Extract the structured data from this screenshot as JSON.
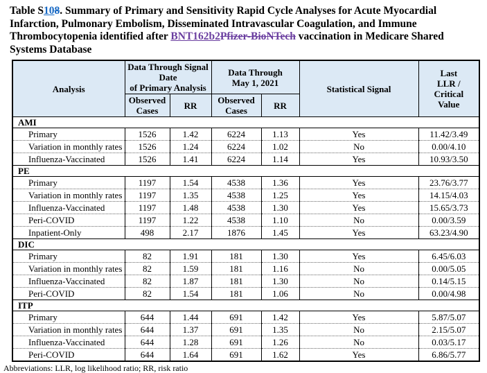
{
  "colors": {
    "insertion_blue": "#1668C4",
    "revision_purple": "#6B3FA0",
    "header_bg": "#DCE9F5",
    "table_border": "#000000"
  },
  "title": {
    "part1": "Table S",
    "inserted_number": "10",
    "deleted_number": "8",
    "part2": ". Summary of Primary and Sensitivity Rapid Cycle Analyses for Acute Myocardial Infarction, Pulmonary Embolism, Disseminated Intravascular Coagulation, and Immune Thrombocytopenia identified after ",
    "inserted_vaccine": "BNT162b2",
    "deleted_vaccine": "Pfizer-BioNTech",
    "part3": " vaccination in Medicare Shared Systems Database"
  },
  "table": {
    "header": {
      "analysis": "Analysis",
      "group1": "Data Through Signal\nDate\nof Primary Analysis",
      "group2": "Data Through\nMay 1, 2021",
      "observed_cases": "Observed\nCases",
      "rr": "RR",
      "statistical_signal": "Statistical Signal",
      "last_llr": "Last\nLLR /\nCritical\nValue"
    },
    "sections": [
      {
        "name": "AMI",
        "rows": [
          {
            "analysis": "Primary",
            "obs1": "1526",
            "rr1": "1.42",
            "obs2": "6224",
            "rr2": "1.13",
            "signal": "Yes",
            "llr": "11.42/3.49"
          },
          {
            "analysis": "Variation in monthly rates",
            "obs1": "1526",
            "rr1": "1.24",
            "obs2": "6224",
            "rr2": "1.02",
            "signal": "No",
            "llr": "0.00/4.10"
          },
          {
            "analysis": "Influenza-Vaccinated",
            "obs1": "1526",
            "rr1": "1.41",
            "obs2": "6224",
            "rr2": "1.14",
            "signal": "Yes",
            "llr": "10.93/3.50"
          }
        ]
      },
      {
        "name": "PE",
        "rows": [
          {
            "analysis": "Primary",
            "obs1": "1197",
            "rr1": "1.54",
            "obs2": "4538",
            "rr2": "1.36",
            "signal": "Yes",
            "llr": "23.76/3.77"
          },
          {
            "analysis": "Variation in monthly rates",
            "obs1": "1197",
            "rr1": "1.35",
            "obs2": "4538",
            "rr2": "1.25",
            "signal": "Yes",
            "llr": "14.15/4.03"
          },
          {
            "analysis": "Influenza-Vaccinated",
            "obs1": "1197",
            "rr1": "1.48",
            "obs2": "4538",
            "rr2": "1.30",
            "signal": "Yes",
            "llr": "15.65/3.73"
          },
          {
            "analysis": "Peri-COVID",
            "obs1": "1197",
            "rr1": "1.22",
            "obs2": "4538",
            "rr2": "1.10",
            "signal": "No",
            "llr": "0.00/3.59"
          },
          {
            "analysis": "Inpatient-Only",
            "obs1": "498",
            "rr1": "2.17",
            "obs2": "1876",
            "rr2": "1.45",
            "signal": "Yes",
            "llr": "63.23/4.90"
          }
        ]
      },
      {
        "name": "DIC",
        "rows": [
          {
            "analysis": "Primary",
            "obs1": "82",
            "rr1": "1.91",
            "obs2": "181",
            "rr2": "1.30",
            "signal": "Yes",
            "llr": "6.45/6.03"
          },
          {
            "analysis": "Variation in monthly rates",
            "obs1": "82",
            "rr1": "1.59",
            "obs2": "181",
            "rr2": "1.16",
            "signal": "No",
            "llr": "0.00/5.05"
          },
          {
            "analysis": "Influenza-Vaccinated",
            "obs1": "82",
            "rr1": "1.87",
            "obs2": "181",
            "rr2": "1.30",
            "signal": "No",
            "llr": "0.14/5.15"
          },
          {
            "analysis": "Peri-COVID",
            "obs1": "82",
            "rr1": "1.54",
            "obs2": "181",
            "rr2": "1.06",
            "signal": "No",
            "llr": "0.00/4.98"
          }
        ]
      },
      {
        "name": "ITP",
        "rows": [
          {
            "analysis": "Primary",
            "obs1": "644",
            "rr1": "1.44",
            "obs2": "691",
            "rr2": "1.42",
            "signal": "Yes",
            "llr": "5.87/5.07"
          },
          {
            "analysis": "Variation in monthly rates",
            "obs1": "644",
            "rr1": "1.37",
            "obs2": "691",
            "rr2": "1.35",
            "signal": "No",
            "llr": "2.15/5.07"
          },
          {
            "analysis": "Influenza-Vaccinated",
            "obs1": "644",
            "rr1": "1.28",
            "obs2": "691",
            "rr2": "1.26",
            "signal": "No",
            "llr": "0.03/5.17"
          },
          {
            "analysis": "Peri-COVID",
            "obs1": "644",
            "rr1": "1.64",
            "obs2": "691",
            "rr2": "1.62",
            "signal": "Yes",
            "llr": "6.86/5.77"
          }
        ]
      }
    ],
    "footnote": "Abbreviations: LLR, log likelihood ratio; RR, risk ratio"
  }
}
